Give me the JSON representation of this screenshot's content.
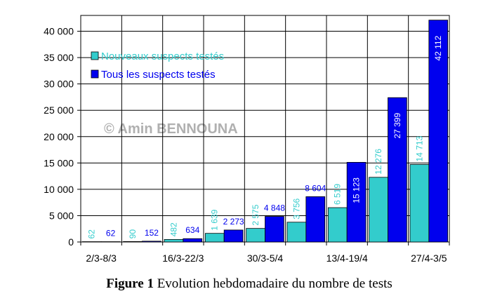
{
  "chart_data": {
    "type": "bar",
    "categories": [
      "2/3-8/3",
      null,
      "16/3-22/3",
      null,
      "30/3-5/4",
      null,
      "13/4-19/4",
      null,
      "27/4-3/5"
    ],
    "series": [
      {
        "name": "Nouveaux suspects testés",
        "color": "#33cccc",
        "values": [
          62,
          90,
          482,
          1639,
          2575,
          3756,
          6519,
          12276,
          14713
        ],
        "value_labels": [
          "62",
          "90",
          "482",
          "1 639",
          "2 575",
          "3 756",
          "6 519",
          "12 276",
          "14 713"
        ]
      },
      {
        "name": "Tous les suspects testés",
        "color": "#0000ee",
        "values": [
          62,
          152,
          634,
          2273,
          4848,
          8604,
          15123,
          27399,
          42112
        ],
        "value_labels": [
          "62",
          "152",
          "634",
          "2 273",
          "4 848",
          "8 604",
          "15 123",
          "27 399",
          "42 112"
        ]
      }
    ],
    "ylim": [
      0,
      43000
    ],
    "yticks": [
      0,
      {
        "value": 5000,
        "label": "5 000"
      },
      {
        "value": 10000,
        "label": "10 000"
      },
      {
        "value": 15000,
        "label": "15 000"
      },
      {
        "value": 20000,
        "label": "20 000"
      },
      {
        "value": 25000,
        "label": "25 000"
      },
      {
        "value": 30000,
        "label": "30 000"
      },
      {
        "value": 35000,
        "label": "35 000"
      },
      {
        "value": 40000,
        "label": "40 000"
      }
    ],
    "grid": true,
    "legend": "top-left",
    "watermark": "© Amin BENNOUNA",
    "caption": {
      "label": "Figure 1",
      "text": "Evolution hebdomadaire du nombre de tests"
    }
  }
}
